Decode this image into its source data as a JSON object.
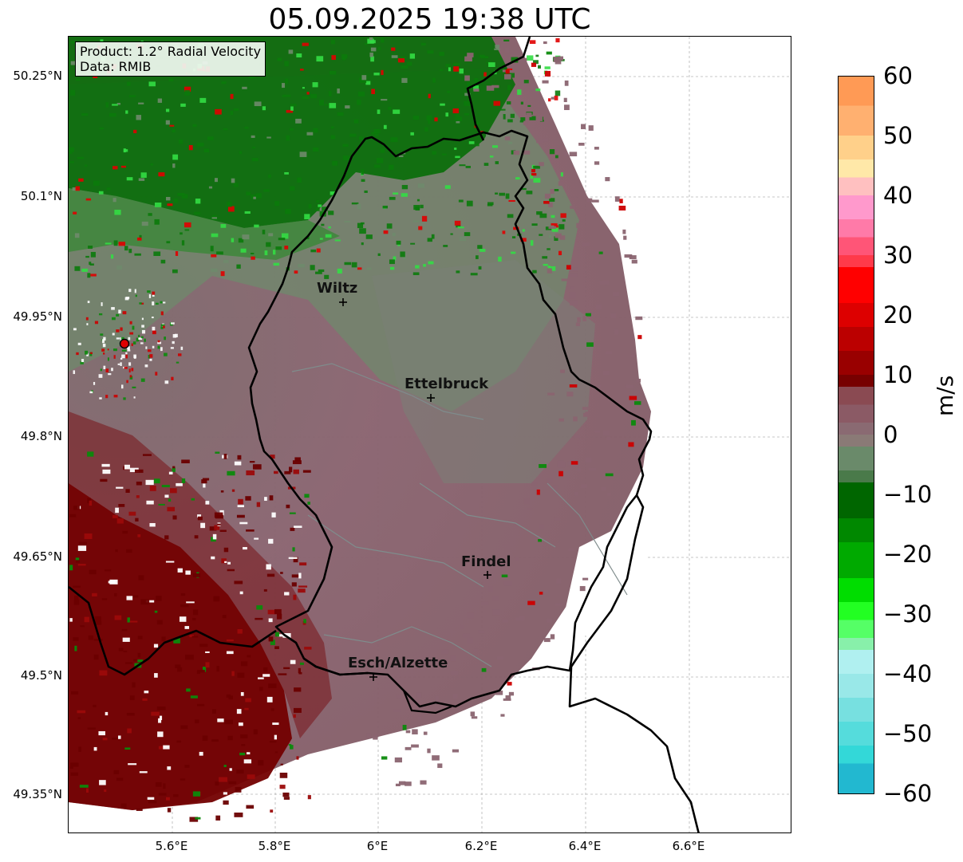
{
  "title": "05.09.2025 19:38 UTC",
  "info": {
    "product": "Product: 1.2° Radial Velocity",
    "data": "Data: RMIB"
  },
  "y_ticks": [
    "50.25°N",
    "50.1°N",
    "49.95°N",
    "49.8°N",
    "49.65°N",
    "49.5°N",
    "49.35°N"
  ],
  "x_ticks": [
    "5.6°E",
    "5.8°E",
    "6°E",
    "6.2°E",
    "6.4°E",
    "6.6°E"
  ],
  "cities": [
    {
      "name": "Wiltz",
      "marker": "+"
    },
    {
      "name": "Ettelbruck",
      "marker": "+"
    },
    {
      "name": "Findel",
      "marker": "+"
    },
    {
      "name": "Esch/Alzette",
      "marker": "+"
    }
  ],
  "radar_site": {
    "color": "#e00000"
  },
  "colorbar": {
    "label": "m/s",
    "min": -60,
    "max": 60,
    "ticks": [
      "60",
      "50",
      "40",
      "30",
      "20",
      "10",
      "0",
      "−10",
      "−20",
      "−30",
      "−40",
      "−50",
      "−60"
    ]
  },
  "colors": {
    "approaching_green": "#0a7a0a",
    "receding_red": "#7a0000",
    "near_zero_mauve": "#8a6470",
    "near_zero_green": "#6f8a6c",
    "border": "#000000"
  }
}
